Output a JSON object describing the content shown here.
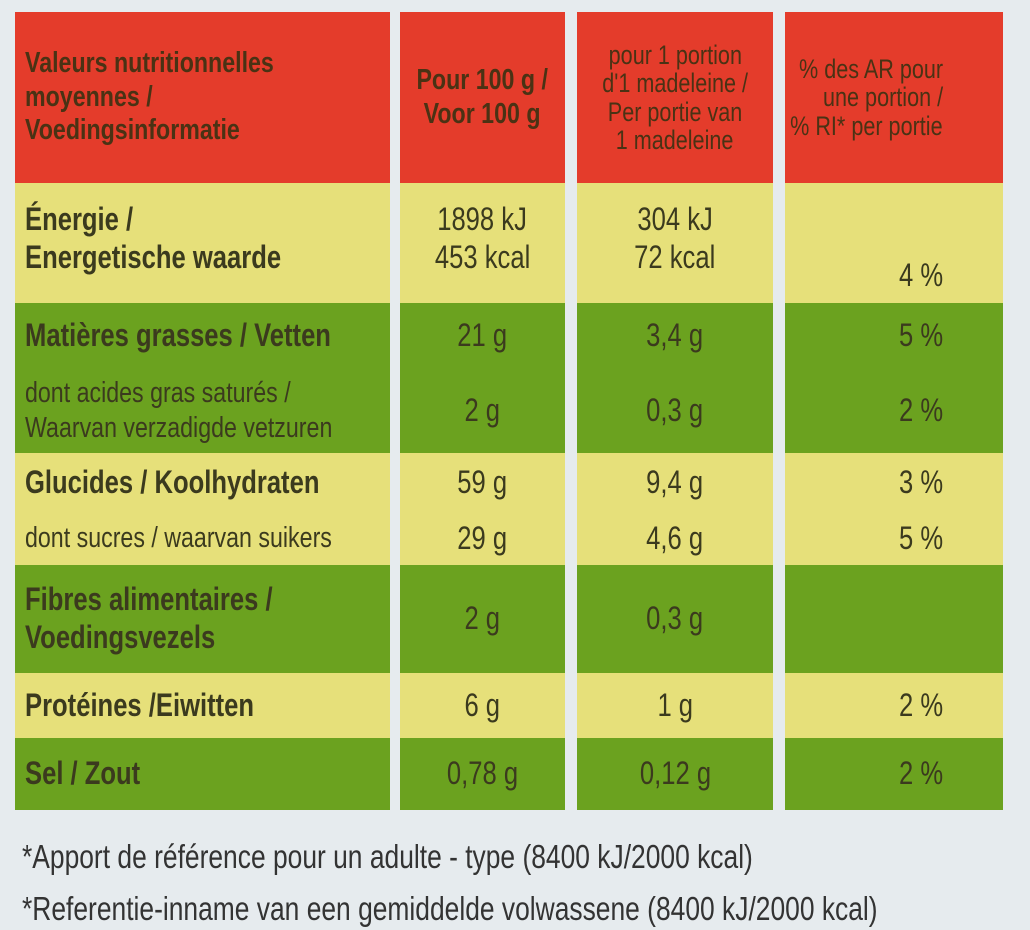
{
  "table": {
    "rows": [
      {
        "cells": [
          [
            "Valeurs nutritionnelles",
            "moyennes /",
            "Voedingsinformatie"
          ],
          [
            "Pour 100 g /",
            "Voor 100 g"
          ],
          [
            "pour 1 portion",
            "d'1 madeleine /",
            "Per portie van",
            "1 madeleine"
          ],
          [
            "% des AR pour",
            "une portion /",
            "% RI* per portie"
          ]
        ]
      },
      {
        "cells": [
          [
            "Énergie /",
            "Energetische waarde"
          ],
          [
            "1898 kJ",
            "453 kcal"
          ],
          [
            "304 kJ",
            "72 kcal"
          ],
          [
            "4 %"
          ]
        ]
      },
      {
        "cells": [
          [
            "Matières grasses / Vetten"
          ],
          [
            "21 g"
          ],
          [
            "3,4 g"
          ],
          [
            "5 %"
          ]
        ]
      },
      {
        "cells": [
          [
            "dont acides gras saturés /",
            "Waarvan verzadigde vetzuren"
          ],
          [
            "2 g"
          ],
          [
            "0,3 g"
          ],
          [
            "2 %"
          ]
        ]
      },
      {
        "cells": [
          [
            "Glucides / Koolhydraten"
          ],
          [
            "59 g"
          ],
          [
            "9,4 g"
          ],
          [
            "3 %"
          ]
        ]
      },
      {
        "cells": [
          [
            "dont sucres / waarvan suikers"
          ],
          [
            "29 g"
          ],
          [
            "4,6 g"
          ],
          [
            "5 %"
          ]
        ]
      },
      {
        "cells": [
          [
            "Fibres alimentaires /",
            "Voedingsvezels"
          ],
          [
            "2 g"
          ],
          [
            "0,3 g"
          ],
          []
        ]
      },
      {
        "cells": [
          [
            "Protéines /Eiwitten"
          ],
          [
            "6 g"
          ],
          [
            "1 g"
          ],
          [
            "2 %"
          ]
        ]
      },
      {
        "cells": [
          [
            "Sel / Zout"
          ],
          [
            "0,78 g"
          ],
          [
            "0,12 g"
          ],
          [
            "2 %"
          ]
        ]
      }
    ]
  },
  "footnotes": [
    "*Apport de référence pour un adulte - type (8400 kJ/2000 kcal)",
    "*Referentie-inname van een gemiddelde volwassene (8400 kJ/2000 kcal)"
  ]
}
